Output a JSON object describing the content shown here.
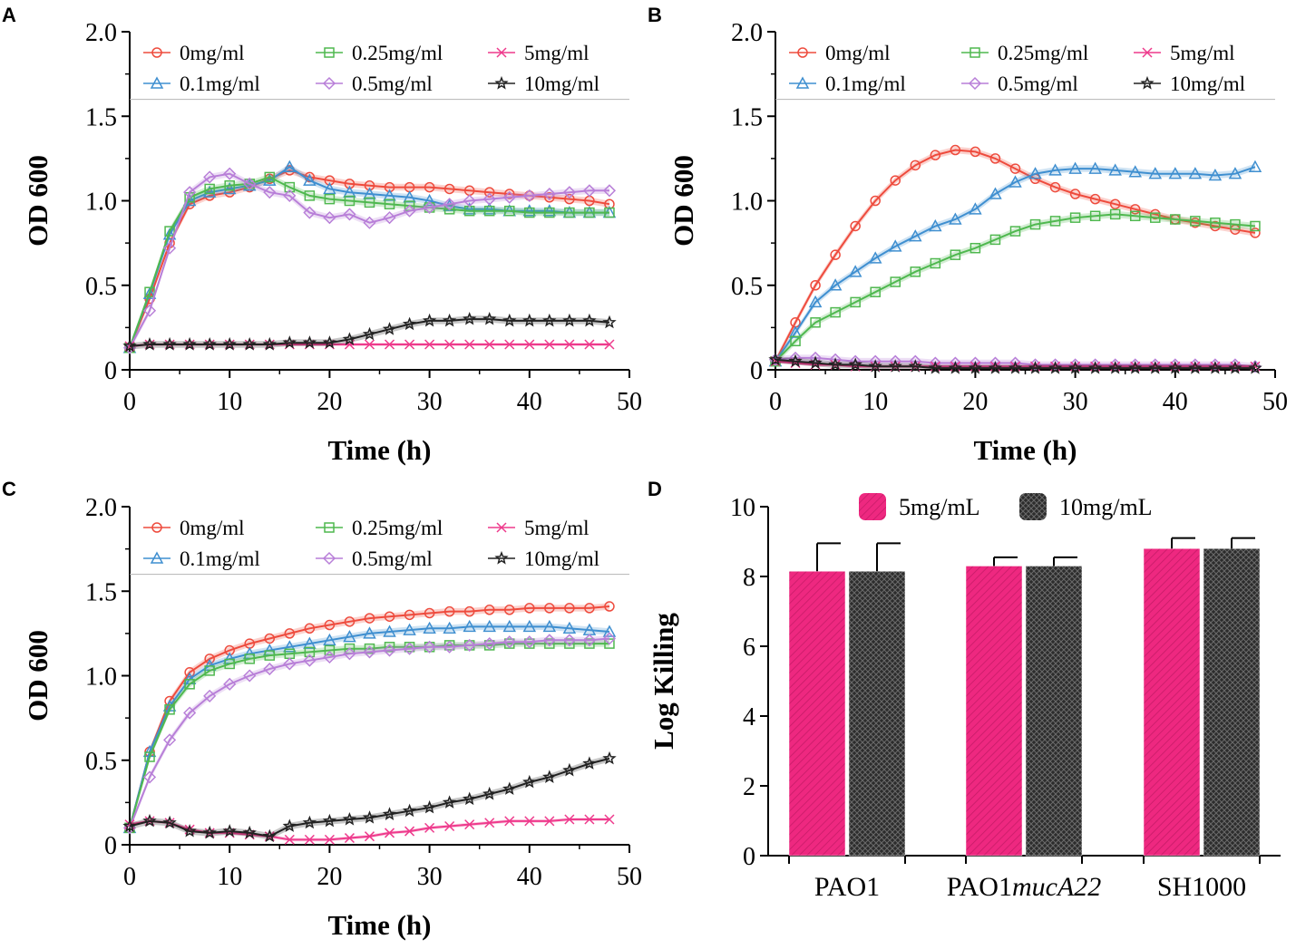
{
  "figure": {
    "panel_labels": [
      "A",
      "B",
      "C",
      "D"
    ]
  },
  "legend_labels": [
    "0mg/ml",
    "0.1mg/ml",
    "0.25mg/ml",
    "0.5mg/ml",
    "5mg/ml",
    "10mg/ml"
  ],
  "series_colors": [
    "#ee4b3d",
    "#3f8fd0",
    "#4fb84f",
    "#b87fd8",
    "#ee3a8c",
    "#222222"
  ],
  "chart_data": [
    {
      "panel": "A",
      "type": "line",
      "title": "",
      "xlabel": "Time (h)",
      "ylabel": "OD 600",
      "xlim": [
        0,
        50
      ],
      "ylim": [
        0,
        2.0
      ],
      "xticks": [
        "0",
        "10",
        "20",
        "30",
        "40",
        "50"
      ],
      "yticks": [
        "0",
        "0.5",
        "1.0",
        "1.5",
        "2.0"
      ],
      "x": [
        0,
        2,
        4,
        6,
        8,
        10,
        12,
        14,
        16,
        18,
        20,
        22,
        24,
        26,
        28,
        30,
        32,
        34,
        36,
        38,
        40,
        42,
        44,
        46,
        48
      ],
      "series": [
        {
          "name": "0mg/ml",
          "values": [
            0.13,
            0.42,
            0.75,
            0.98,
            1.03,
            1.05,
            1.08,
            1.13,
            1.18,
            1.14,
            1.12,
            1.1,
            1.09,
            1.08,
            1.08,
            1.08,
            1.07,
            1.06,
            1.05,
            1.04,
            1.03,
            1.02,
            1.01,
            1.0,
            0.98
          ]
        },
        {
          "name": "0.1mg/ml",
          "values": [
            0.13,
            0.45,
            0.8,
            1.0,
            1.05,
            1.07,
            1.09,
            1.12,
            1.2,
            1.12,
            1.07,
            1.05,
            1.04,
            1.03,
            1.02,
            1.0,
            0.97,
            0.95,
            0.95,
            0.94,
            0.94,
            0.94,
            0.93,
            0.93,
            0.93
          ]
        },
        {
          "name": "0.25mg/ml",
          "values": [
            0.13,
            0.46,
            0.82,
            1.02,
            1.07,
            1.09,
            1.1,
            1.14,
            1.08,
            1.03,
            1.01,
            1.0,
            0.99,
            0.98,
            0.97,
            0.96,
            0.95,
            0.94,
            0.94,
            0.94,
            0.93,
            0.93,
            0.93,
            0.93,
            0.93
          ]
        },
        {
          "name": "0.5mg/ml",
          "values": [
            0.13,
            0.35,
            0.72,
            1.05,
            1.14,
            1.16,
            1.1,
            1.05,
            1.03,
            0.93,
            0.9,
            0.92,
            0.87,
            0.9,
            0.94,
            0.96,
            0.98,
            1.0,
            1.01,
            1.02,
            1.03,
            1.04,
            1.05,
            1.06,
            1.06
          ]
        },
        {
          "name": "5mg/ml",
          "values": [
            0.14,
            0.15,
            0.15,
            0.15,
            0.15,
            0.15,
            0.15,
            0.15,
            0.15,
            0.15,
            0.15,
            0.15,
            0.15,
            0.15,
            0.15,
            0.15,
            0.15,
            0.15,
            0.15,
            0.15,
            0.15,
            0.15,
            0.15,
            0.15,
            0.15
          ]
        },
        {
          "name": "10mg/ml",
          "values": [
            0.14,
            0.15,
            0.15,
            0.15,
            0.15,
            0.15,
            0.15,
            0.15,
            0.16,
            0.16,
            0.16,
            0.18,
            0.21,
            0.24,
            0.27,
            0.29,
            0.29,
            0.3,
            0.3,
            0.29,
            0.29,
            0.29,
            0.29,
            0.29,
            0.28
          ]
        }
      ]
    },
    {
      "panel": "B",
      "type": "line",
      "title": "",
      "xlabel": "Time (h)",
      "ylabel": "OD 600",
      "xlim": [
        0,
        50
      ],
      "ylim": [
        0,
        2.0
      ],
      "xticks": [
        "0",
        "10",
        "20",
        "30",
        "40",
        "50"
      ],
      "yticks": [
        "0",
        "0.5",
        "1.0",
        "1.5",
        "2.0"
      ],
      "x": [
        0,
        2,
        4,
        6,
        8,
        10,
        12,
        14,
        16,
        18,
        20,
        22,
        24,
        26,
        28,
        30,
        32,
        34,
        36,
        38,
        40,
        42,
        44,
        46,
        48
      ],
      "series": [
        {
          "name": "0mg/ml",
          "values": [
            0.05,
            0.28,
            0.5,
            0.68,
            0.85,
            1.0,
            1.12,
            1.21,
            1.27,
            1.3,
            1.29,
            1.25,
            1.19,
            1.13,
            1.08,
            1.04,
            1.01,
            0.98,
            0.95,
            0.92,
            0.89,
            0.87,
            0.85,
            0.83,
            0.81
          ]
        },
        {
          "name": "0.1mg/ml",
          "values": [
            0.05,
            0.22,
            0.4,
            0.5,
            0.58,
            0.66,
            0.73,
            0.79,
            0.85,
            0.89,
            0.95,
            1.04,
            1.11,
            1.16,
            1.18,
            1.19,
            1.19,
            1.18,
            1.17,
            1.16,
            1.16,
            1.16,
            1.15,
            1.16,
            1.2
          ]
        },
        {
          "name": "0.25mg/ml",
          "values": [
            0.05,
            0.17,
            0.28,
            0.34,
            0.4,
            0.46,
            0.52,
            0.58,
            0.63,
            0.68,
            0.72,
            0.77,
            0.82,
            0.86,
            0.88,
            0.9,
            0.91,
            0.92,
            0.91,
            0.9,
            0.89,
            0.88,
            0.87,
            0.86,
            0.85
          ]
        },
        {
          "name": "0.5mg/ml",
          "values": [
            0.06,
            0.07,
            0.07,
            0.06,
            0.05,
            0.05,
            0.05,
            0.05,
            0.04,
            0.04,
            0.04,
            0.04,
            0.04,
            0.03,
            0.03,
            0.03,
            0.03,
            0.03,
            0.03,
            0.03,
            0.03,
            0.03,
            0.03,
            0.03,
            0.02
          ]
        },
        {
          "name": "5mg/ml",
          "values": [
            0.05,
            0.04,
            0.03,
            0.03,
            0.02,
            0.02,
            0.02,
            0.02,
            0.02,
            0.02,
            0.02,
            0.02,
            0.02,
            0.02,
            0.02,
            0.02,
            0.02,
            0.02,
            0.02,
            0.02,
            0.02,
            0.02,
            0.02,
            0.02,
            0.02
          ]
        },
        {
          "name": "10mg/ml",
          "values": [
            0.06,
            0.05,
            0.04,
            0.03,
            0.03,
            0.02,
            0.02,
            0.02,
            0.01,
            0.01,
            0.01,
            0.01,
            0.01,
            0.01,
            0.01,
            0.01,
            0.01,
            0.01,
            0.01,
            0.01,
            0.01,
            0.01,
            0.01,
            0.01,
            0.01
          ]
        }
      ]
    },
    {
      "panel": "C",
      "type": "line",
      "title": "",
      "xlabel": "Time (h)",
      "ylabel": "OD 600",
      "xlim": [
        0,
        50
      ],
      "ylim": [
        0,
        2.0
      ],
      "xticks": [
        "0",
        "10",
        "20",
        "30",
        "40",
        "50"
      ],
      "yticks": [
        "0",
        "0.5",
        "1.0",
        "1.5",
        "2.0"
      ],
      "x": [
        0,
        2,
        4,
        6,
        8,
        10,
        12,
        14,
        16,
        18,
        20,
        22,
        24,
        26,
        28,
        30,
        32,
        34,
        36,
        38,
        40,
        42,
        44,
        46,
        48
      ],
      "series": [
        {
          "name": "0mg/ml",
          "values": [
            0.1,
            0.55,
            0.85,
            1.02,
            1.1,
            1.15,
            1.19,
            1.22,
            1.25,
            1.28,
            1.3,
            1.32,
            1.34,
            1.35,
            1.36,
            1.37,
            1.38,
            1.38,
            1.39,
            1.39,
            1.4,
            1.4,
            1.4,
            1.4,
            1.41
          ]
        },
        {
          "name": "0.1mg/ml",
          "values": [
            0.1,
            0.55,
            0.82,
            0.98,
            1.06,
            1.1,
            1.13,
            1.15,
            1.17,
            1.19,
            1.21,
            1.23,
            1.25,
            1.26,
            1.27,
            1.28,
            1.28,
            1.29,
            1.29,
            1.29,
            1.29,
            1.29,
            1.28,
            1.27,
            1.26
          ]
        },
        {
          "name": "0.25mg/ml",
          "values": [
            0.1,
            0.52,
            0.8,
            0.95,
            1.03,
            1.07,
            1.1,
            1.12,
            1.13,
            1.14,
            1.15,
            1.16,
            1.16,
            1.17,
            1.17,
            1.17,
            1.18,
            1.18,
            1.18,
            1.19,
            1.19,
            1.19,
            1.19,
            1.19,
            1.19
          ]
        },
        {
          "name": "0.5mg/ml",
          "values": [
            0.1,
            0.4,
            0.62,
            0.78,
            0.88,
            0.95,
            1.0,
            1.04,
            1.07,
            1.09,
            1.11,
            1.13,
            1.14,
            1.15,
            1.16,
            1.17,
            1.17,
            1.18,
            1.19,
            1.2,
            1.2,
            1.21,
            1.21,
            1.21,
            1.22
          ]
        },
        {
          "name": "5mg/ml",
          "values": [
            0.12,
            0.14,
            0.13,
            0.09,
            0.07,
            0.07,
            0.06,
            0.05,
            0.03,
            0.03,
            0.03,
            0.04,
            0.05,
            0.07,
            0.08,
            0.1,
            0.11,
            0.12,
            0.13,
            0.14,
            0.14,
            0.14,
            0.15,
            0.15,
            0.15
          ]
        },
        {
          "name": "10mg/ml",
          "values": [
            0.11,
            0.14,
            0.13,
            0.08,
            0.07,
            0.08,
            0.07,
            0.05,
            0.11,
            0.13,
            0.14,
            0.15,
            0.16,
            0.18,
            0.2,
            0.22,
            0.25,
            0.27,
            0.3,
            0.33,
            0.37,
            0.4,
            0.44,
            0.48,
            0.51
          ]
        }
      ]
    },
    {
      "panel": "D",
      "type": "bar",
      "title": "",
      "xlabel": "",
      "ylabel": "Log Killing",
      "ylim": [
        0,
        10
      ],
      "yticks": [
        "0",
        "2",
        "4",
        "6",
        "8",
        "10"
      ],
      "categories": [
        "PAO1",
        "PAO1mucA22",
        "SH1000"
      ],
      "category_parts": [
        {
          "base": "PAO1",
          "italic": ""
        },
        {
          "base": "PAO1",
          "italic": "mucA22"
        },
        {
          "base": "SH1000",
          "italic": ""
        }
      ],
      "series": [
        {
          "name": "5mg/mL",
          "values": [
            8.15,
            8.3,
            8.8
          ],
          "errors": [
            0.8,
            0.25,
            0.3
          ]
        },
        {
          "name": "10mg/mL",
          "values": [
            8.15,
            8.3,
            8.8
          ],
          "errors": [
            0.8,
            0.25,
            0.3
          ]
        }
      ]
    }
  ]
}
